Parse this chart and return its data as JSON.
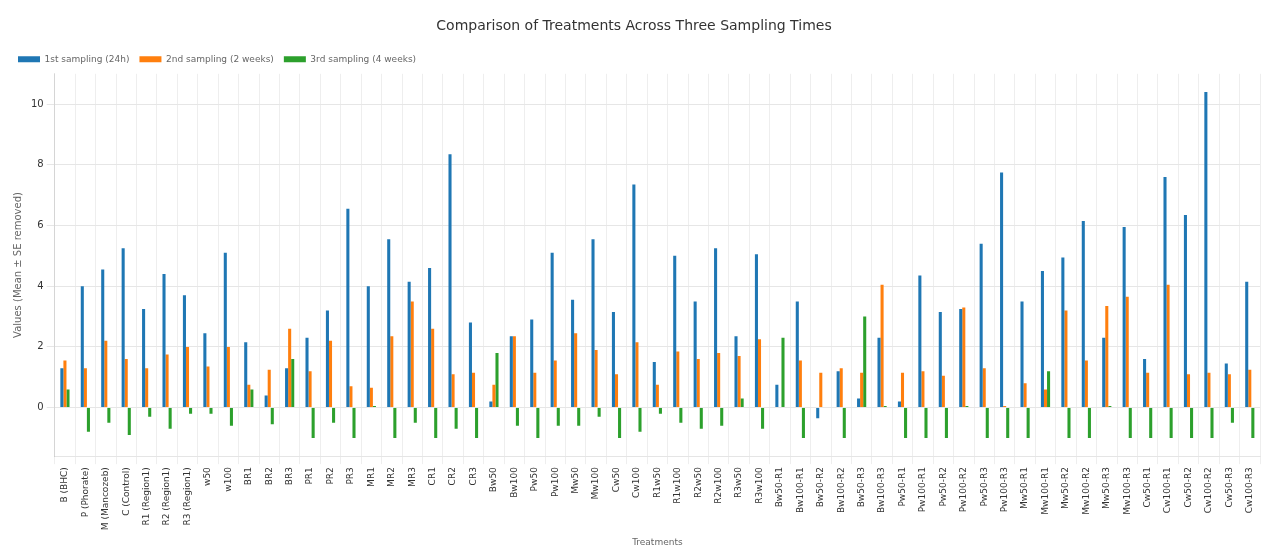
{
  "chart_data": {
    "type": "bar",
    "title": "Comparison of Treatments Across Three Sampling Times",
    "xlabel": "Treatments",
    "ylabel": "Values (Mean ± SE removed)",
    "categories": [
      "B (BHC)",
      "P (Phorate)",
      "M (Mancozeb)",
      "C (Control)",
      "R1 (Region1)",
      "R2 (Region1)",
      "R3 (Region1)",
      "w50",
      "w100",
      "BR1",
      "BR2",
      "BR3",
      "PR1",
      "PR2",
      "PR3",
      "MR1",
      "MR2",
      "MR3",
      "CR1",
      "CR2",
      "CR3",
      "Bw50",
      "Bw100",
      "Pw50",
      "Pw100",
      "Mw50",
      "Mw100",
      "Cw50",
      "Cw100",
      "R1w50",
      "R1w100",
      "R2w50",
      "R2w100",
      "R3w50",
      "R3w100",
      "Bw50-R1",
      "Bw100-R1",
      "Bw50-R2",
      "Bw100-R2",
      "Bw50-R3",
      "Bw100-R3",
      "Pw50-R1",
      "Pw100-R1",
      "Pw50-R2",
      "Pw100-R2",
      "Pw50-R3",
      "Pw100-R3",
      "Mw50-R1",
      "Mw100-R1",
      "Mw50-R2",
      "Mw100-R2",
      "Mw50-R3",
      "Mw100-R3",
      "Cw50-R1",
      "Cw100-R1",
      "Cw50-R2",
      "Cw100-R2",
      "Cw50-R3",
      "Cw100-R3"
    ],
    "series": [
      {
        "name": "1st sampling (24h)",
        "color": "#1f77b4",
        "values": [
          1.3,
          4.0,
          4.55,
          5.25,
          3.25,
          4.4,
          3.7,
          2.45,
          5.1,
          2.15,
          0.4,
          1.3,
          2.3,
          3.2,
          6.55,
          4.0,
          5.55,
          4.15,
          4.6,
          8.35,
          2.8,
          0.2,
          2.35,
          2.9,
          5.1,
          3.55,
          5.55,
          3.15,
          7.35,
          1.5,
          5.0,
          3.5,
          5.25,
          2.35,
          5.05,
          0.75,
          3.5,
          -0.35,
          1.2,
          0.3,
          2.3,
          0.2,
          4.35,
          3.15,
          3.25,
          5.4,
          7.75,
          3.5,
          4.5,
          4.95,
          6.15,
          2.3,
          5.95,
          1.6,
          7.6,
          6.35,
          10.4,
          1.45,
          4.15
        ]
      },
      {
        "name": "2nd sampling (2 weeks)",
        "color": "#ff7f0e",
        "values": [
          1.55,
          1.3,
          2.2,
          1.6,
          1.3,
          1.75,
          2.0,
          1.35,
          2.0,
          0.75,
          1.25,
          2.6,
          1.2,
          2.2,
          0.7,
          0.65,
          2.35,
          3.5,
          2.6,
          1.1,
          1.15,
          0.75,
          2.35,
          1.15,
          1.55,
          2.45,
          1.9,
          1.1,
          2.15,
          0.75,
          1.85,
          1.6,
          1.8,
          1.7,
          2.25,
          0,
          1.55,
          1.15,
          1.3,
          1.15,
          4.05,
          1.15,
          1.2,
          1.05,
          3.3,
          1.3,
          0.05,
          0.8,
          0.6,
          3.2,
          1.55,
          3.35,
          3.65,
          1.15,
          4.05,
          1.1,
          1.15,
          1.1,
          1.25
        ]
      },
      {
        "name": "3rd sampling (4 weeks)",
        "color": "#2ca02c",
        "values": [
          0.6,
          -0.8,
          -0.5,
          -0.9,
          -0.3,
          -0.7,
          -0.2,
          -0.2,
          -0.6,
          0.6,
          -0.55,
          1.6,
          -1.0,
          -0.5,
          -1.0,
          0.05,
          -1.0,
          -0.5,
          -1.0,
          -0.7,
          -1.0,
          1.8,
          -0.6,
          -1.0,
          -0.6,
          -0.6,
          -0.3,
          -1.0,
          -0.8,
          -0.2,
          -0.5,
          -0.7,
          -0.6,
          0.3,
          -0.7,
          2.3,
          -1.0,
          0,
          -1.0,
          3.0,
          0.05,
          -1.0,
          -1.0,
          -1.0,
          0.05,
          -1.0,
          -1.0,
          -1.0,
          1.2,
          -1.0,
          -1.0,
          0.05,
          -1.0,
          -1.0,
          -1.0,
          -1.0,
          -1.0,
          -0.5,
          -1.0
        ]
      }
    ],
    "ylim": [
      -1.6,
      11
    ],
    "yticks": [
      0,
      2,
      4,
      6,
      8,
      10
    ],
    "grid": true,
    "legend": "top left"
  }
}
